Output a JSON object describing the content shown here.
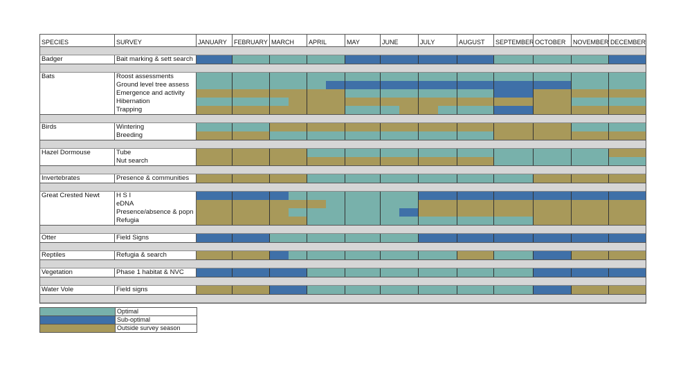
{
  "header": {
    "species": "SPECIES",
    "survey": "SURVEY",
    "months": [
      "JANUARY",
      "FEBRUARY",
      "MARCH",
      "APRIL",
      "MAY",
      "JUNE",
      "JULY",
      "AUGUST",
      "SEPTEMBER",
      "OCTOBER",
      "NOVEMBER",
      "DECEMBER"
    ]
  },
  "colors": {
    "O": "#78b1ab",
    "S": "#3f70a8",
    "X": "#a8995a",
    "separator": "#d6d6d6"
  },
  "legend": [
    {
      "code": "O",
      "label": "Optimal"
    },
    {
      "code": "S",
      "label": "Sub-optimal"
    },
    {
      "code": "X",
      "label": "Outside survey season"
    }
  ],
  "groups": [
    {
      "species": "Badger",
      "surveys": [
        {
          "name": "Bait marking & sett search",
          "months": [
            "S",
            "O",
            "O",
            "O",
            "S",
            "S",
            "S",
            "S",
            "O",
            "O",
            "O",
            "S"
          ]
        }
      ]
    },
    {
      "species": "Bats",
      "surveys": [
        {
          "name": "Roost assessments",
          "months": [
            "O",
            "O",
            "O",
            "O",
            "O",
            "O",
            "O",
            "O",
            "O",
            "O",
            "O",
            "O"
          ]
        },
        {
          "name": "Ground level tree assess",
          "months": [
            "O",
            "O",
            "O",
            "O|S",
            "S",
            "S",
            "S",
            "S",
            "S",
            "S",
            "O",
            "O"
          ]
        },
        {
          "name": "Emergence and activity",
          "months": [
            "X",
            "X",
            "X",
            "X",
            "O",
            "O",
            "O",
            "O",
            "S",
            "X",
            "X",
            "X"
          ]
        },
        {
          "name": "Hibernation",
          "months": [
            "O",
            "O",
            "O|X",
            "X",
            "X",
            "X",
            "X",
            "X",
            "X",
            "X",
            "O",
            "O"
          ]
        },
        {
          "name": "Trapping",
          "months": [
            "X",
            "X",
            "X",
            "X",
            "O",
            "O|X",
            "X|O",
            "O",
            "S",
            "X",
            "X",
            "X"
          ]
        }
      ]
    },
    {
      "species": "Birds",
      "surveys": [
        {
          "name": "Wintering",
          "months": [
            "O",
            "O",
            "X",
            "X",
            "X",
            "X",
            "X",
            "X",
            "X",
            "X",
            "O",
            "O"
          ]
        },
        {
          "name": "Breeding",
          "months": [
            "X",
            "X",
            "O",
            "O",
            "O",
            "O",
            "O",
            "O",
            "X",
            "X",
            "X",
            "X"
          ]
        }
      ]
    },
    {
      "species": "Hazel Dormouse",
      "surveys": [
        {
          "name": "Tube",
          "months": [
            "X",
            "X",
            "X",
            "O",
            "O",
            "O",
            "O",
            "O",
            "O",
            "O",
            "O",
            "X"
          ]
        },
        {
          "name": "Nut search",
          "months": [
            "X",
            "X",
            "X",
            "X",
            "X",
            "X",
            "X",
            "X",
            "O",
            "O",
            "O",
            "O"
          ]
        }
      ]
    },
    {
      "species": "Invertebrates",
      "surveys": [
        {
          "name": "Presence & communities",
          "months": [
            "X",
            "X",
            "X",
            "O",
            "O",
            "O",
            "O",
            "O",
            "O",
            "X",
            "X",
            "X"
          ]
        }
      ]
    },
    {
      "species": "Great Crested Newt",
      "surveys": [
        {
          "name": "H S I",
          "months": [
            "S",
            "S",
            "S|O",
            "O",
            "O",
            "O",
            "S",
            "S",
            "S",
            "S",
            "S",
            "S"
          ]
        },
        {
          "name": "eDNA",
          "months": [
            "X",
            "X",
            "X",
            "X|O",
            "O",
            "O",
            "X",
            "X",
            "X",
            "X",
            "X",
            "X"
          ]
        },
        {
          "name": "Presence/absence & popn",
          "months": [
            "X",
            "X",
            "X|O",
            "O",
            "O",
            "O|S",
            "X",
            "X",
            "X",
            "X",
            "X",
            "X"
          ]
        },
        {
          "name": "Refugia",
          "months": [
            "X",
            "X",
            "X",
            "O",
            "O",
            "O",
            "O",
            "O",
            "O",
            "X",
            "X",
            "X"
          ]
        }
      ]
    },
    {
      "species": "Otter",
      "surveys": [
        {
          "name": "Field Signs",
          "months": [
            "S",
            "S",
            "O",
            "O",
            "O",
            "O",
            "S",
            "S",
            "S",
            "S",
            "S",
            "S"
          ]
        }
      ]
    },
    {
      "species": "Reptiles",
      "surveys": [
        {
          "name": "Refugia & search",
          "months": [
            "X",
            "X",
            "S|O",
            "O",
            "O",
            "O",
            "O",
            "X",
            "O",
            "S",
            "X",
            "X"
          ]
        }
      ]
    },
    {
      "species": "Vegetation",
      "surveys": [
        {
          "name": "Phase 1 habitat & NVC",
          "months": [
            "S",
            "S",
            "S",
            "O",
            "O",
            "O",
            "O",
            "O",
            "O",
            "S",
            "S",
            "S"
          ]
        }
      ]
    },
    {
      "species": "Water Vole",
      "surveys": [
        {
          "name": "Field signs",
          "months": [
            "X",
            "X",
            "S",
            "O",
            "O",
            "O",
            "O",
            "O",
            "O",
            "S",
            "X",
            "X"
          ]
        }
      ]
    }
  ]
}
